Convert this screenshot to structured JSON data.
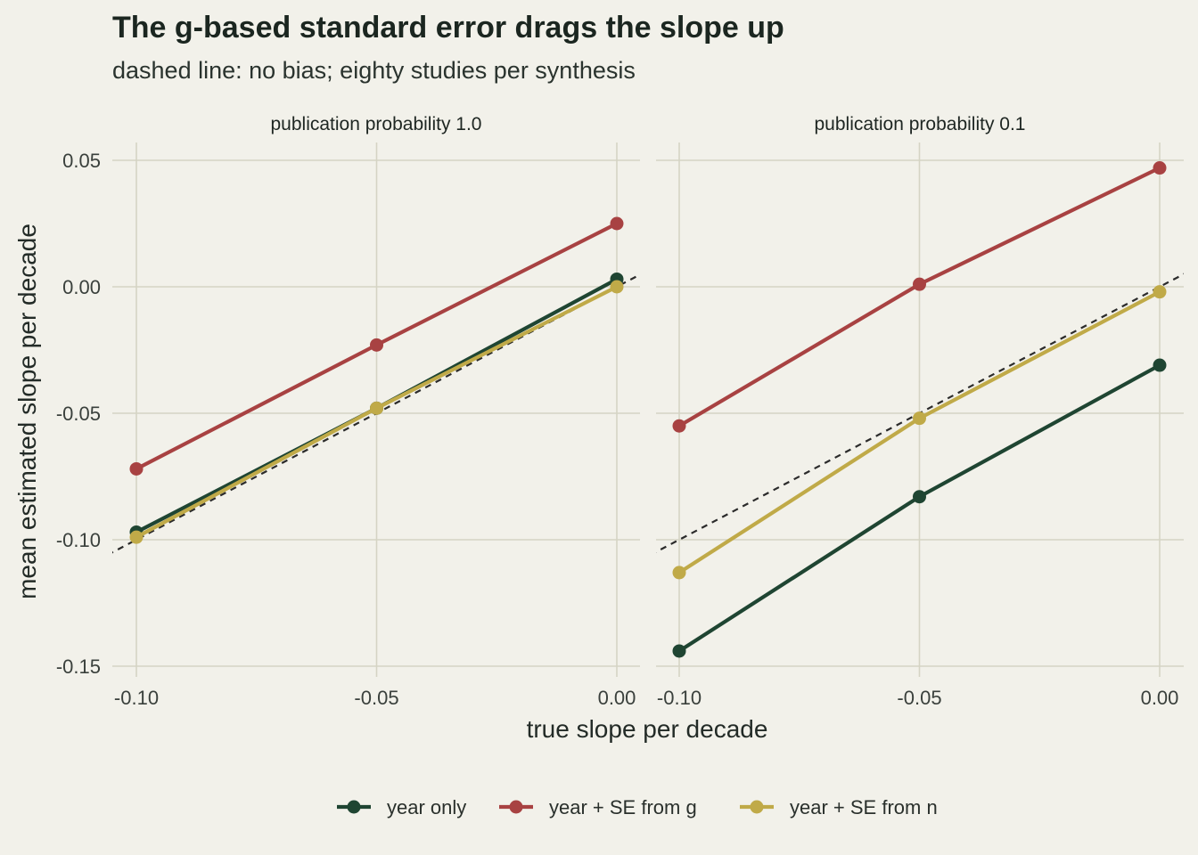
{
  "title": "The g-based standard error drags the slope up",
  "subtitle": "dashed line: no bias; eighty studies per synthesis",
  "colors": {
    "background": "#f2f1ea",
    "grid": "#d5d4c4",
    "reference_line": "#2b2b2b",
    "year_only": "#1f4532",
    "se_from_g": "#a84242",
    "se_from_n": "#c0aa48"
  },
  "chart_data": {
    "type": "line",
    "xlabel": "true slope per decade",
    "ylabel": "mean estimated slope per decade",
    "x_ticks": [
      "-0.10",
      "-0.05",
      "0.00"
    ],
    "y_ticks": [
      "0.05",
      "0.00",
      "-0.05",
      "-0.10",
      "-0.15"
    ],
    "xlim": [
      -0.105,
      0.005
    ],
    "ylim": [
      -0.15,
      0.05
    ],
    "grid": true,
    "reference_line": {
      "style": "dashed",
      "slope": 1,
      "intercept": 0
    },
    "legend": {
      "position": "bottom",
      "entries": [
        "year only",
        "year + SE from g",
        "year + SE from n"
      ]
    },
    "panels": [
      {
        "label": "publication probability 1.0",
        "x": [
          -0.1,
          -0.05,
          0.0
        ],
        "series": [
          {
            "name": "year only",
            "color_key": "year_only",
            "values": [
              -0.097,
              -0.048,
              0.003
            ]
          },
          {
            "name": "year + SE from g",
            "color_key": "se_from_g",
            "values": [
              -0.072,
              -0.023,
              0.025
            ]
          },
          {
            "name": "year + SE from n",
            "color_key": "se_from_n",
            "values": [
              -0.099,
              -0.048,
              0.0
            ]
          }
        ]
      },
      {
        "label": "publication probability 0.1",
        "x": [
          -0.1,
          -0.05,
          0.0
        ],
        "series": [
          {
            "name": "year only",
            "color_key": "year_only",
            "values": [
              -0.144,
              -0.083,
              -0.031
            ]
          },
          {
            "name": "year + SE from g",
            "color_key": "se_from_g",
            "values": [
              -0.055,
              0.001,
              0.047
            ]
          },
          {
            "name": "year + SE from n",
            "color_key": "se_from_n",
            "values": [
              -0.113,
              -0.052,
              -0.002
            ]
          }
        ]
      }
    ]
  }
}
